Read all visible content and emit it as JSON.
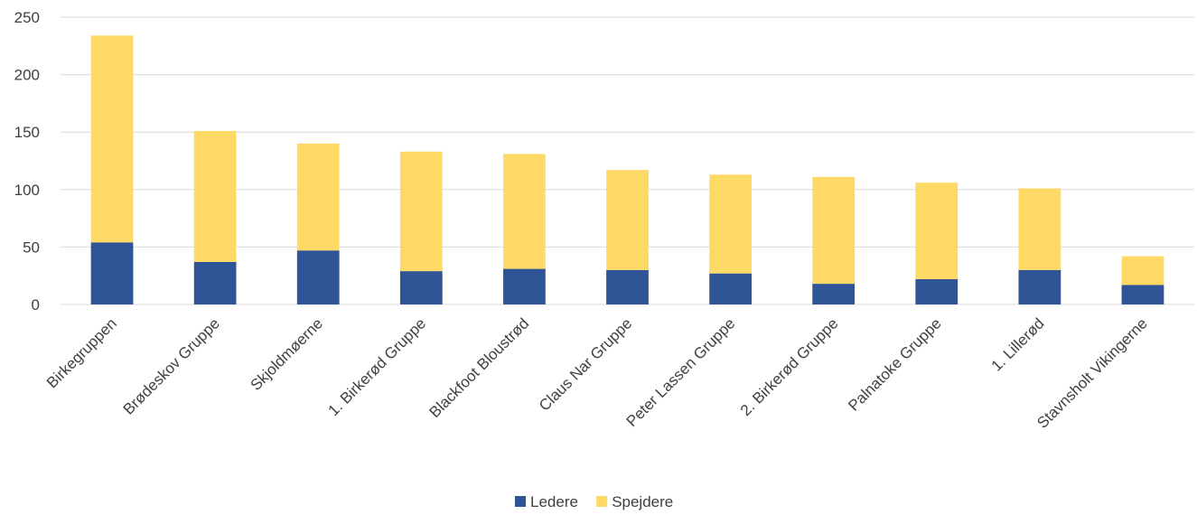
{
  "chart_data": {
    "type": "bar",
    "stacked": true,
    "categories": [
      "Birkegruppen",
      "Brødeskov Gruppe",
      "Skjoldmøerne",
      "1. Birkerød Gruppe",
      "Blackfoot Bloustrød",
      "Claus Nar Gruppe",
      "Peter Lassen Gruppe",
      "2. Birkerød Gruppe",
      "Palnatoke Gruppe",
      "1. Lillerød",
      "Stavnsholt Vikingerne"
    ],
    "series": [
      {
        "name": "Ledere",
        "color": "#2f5597",
        "values": [
          54,
          37,
          47,
          29,
          31,
          30,
          27,
          18,
          22,
          30,
          17
        ]
      },
      {
        "name": "Spejdere",
        "color": "#ffd966",
        "values": [
          180,
          114,
          93,
          104,
          100,
          87,
          86,
          93,
          84,
          71,
          25
        ]
      }
    ],
    "ylim": [
      0,
      250
    ],
    "yticks": [
      0,
      50,
      100,
      150,
      200,
      250
    ],
    "grid": true,
    "legend_position": "bottom",
    "title": "",
    "xlabel": "",
    "ylabel": ""
  }
}
